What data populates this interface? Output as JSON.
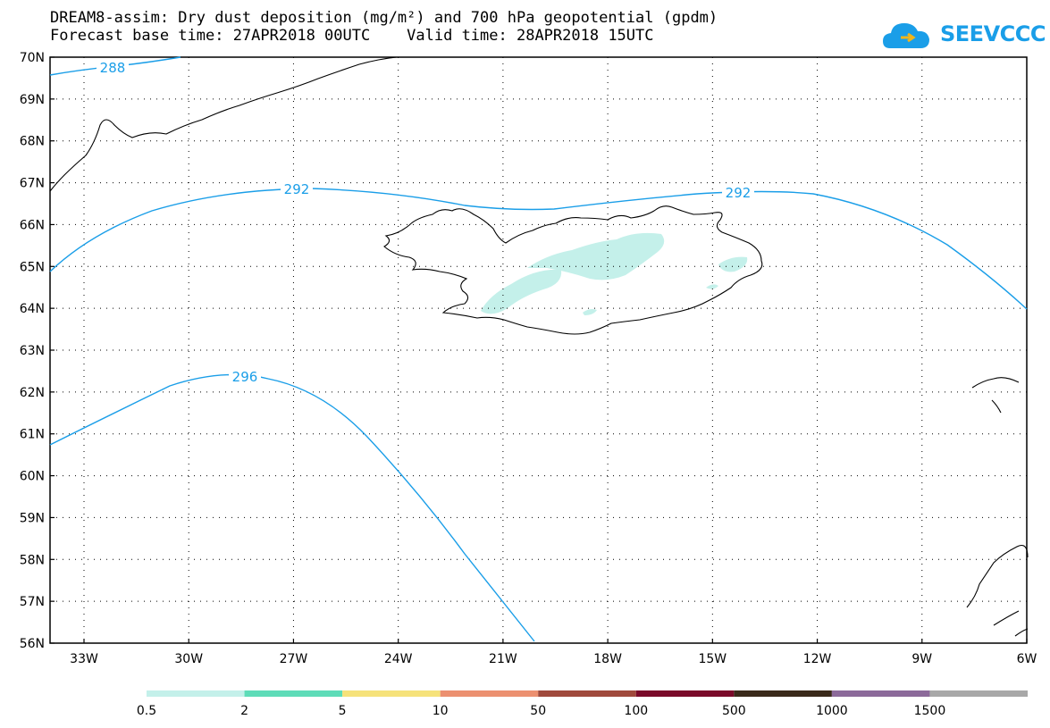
{
  "title": {
    "line1": "DREAM8-assim: Dry dust deposition (mg/m²) and 700 hPa geopotential (gpdm)",
    "line2": "Forecast base time: 27APR2018 00UTC    Valid time: 28APR2018 15UTC"
  },
  "logo": {
    "text": "SEEVCCC",
    "icon": "cloud-icon",
    "color": "#1a9ee8"
  },
  "map": {
    "lat_labels": [
      "70N",
      "69N",
      "68N",
      "67N",
      "66N",
      "65N",
      "64N",
      "63N",
      "62N",
      "61N",
      "60N",
      "59N",
      "58N",
      "57N",
      "56N"
    ],
    "lon_labels": [
      "33W",
      "30W",
      "27W",
      "24W",
      "21W",
      "18W",
      "15W",
      "12W",
      "9W",
      "6W"
    ],
    "contour_color": "#1a9ee8",
    "contours": [
      {
        "value": "288"
      },
      {
        "value": "292"
      },
      {
        "value": "292"
      },
      {
        "value": "296"
      }
    ],
    "dust_fill_color": "#c4f0ea"
  },
  "legend": {
    "labels": [
      "0.5",
      "2",
      "5",
      "10",
      "50",
      "100",
      "500",
      "1000",
      "1500"
    ],
    "colors": [
      "#c4f0ea",
      "#5edcb8",
      "#f6e27a",
      "#ec9070",
      "#a04a3c",
      "#7a0a2a",
      "#3a2a1a",
      "#8c6a9a",
      "#a8a8a8"
    ]
  }
}
